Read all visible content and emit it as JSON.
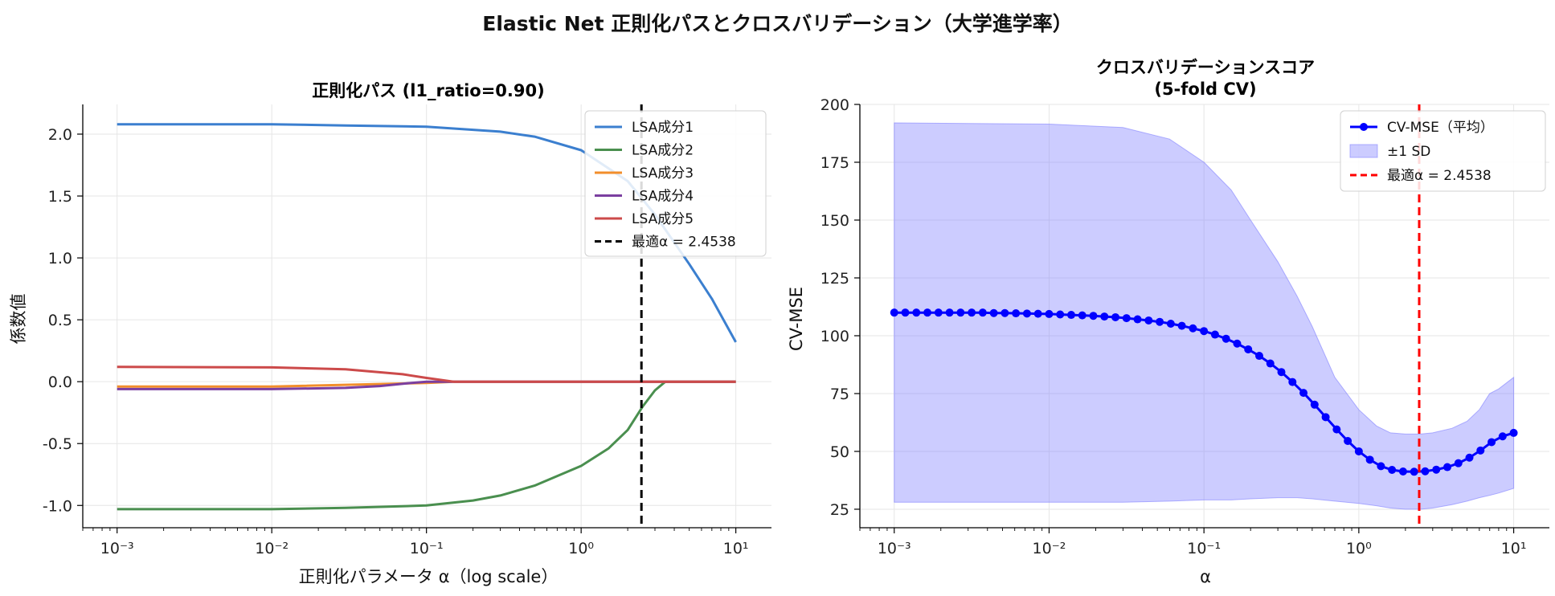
{
  "suptitle": "Elastic Net 正則化パスとクロスバリデーション（大学進学率）",
  "chart_data": [
    {
      "type": "line",
      "title": "正則化パス (l1_ratio=0.90)",
      "xlabel": "正則化パラメータ α（log scale）",
      "ylabel": "係数値",
      "xscale": "log",
      "xlim": [
        0.0006,
        17
      ],
      "ylim": [
        -1.18,
        2.24
      ],
      "xtick_values": [
        0.001,
        0.01,
        0.1,
        1,
        10
      ],
      "xtick_labels": [
        "10⁻³",
        "10⁻²",
        "10⁻¹",
        "10⁰",
        "10¹"
      ],
      "ytick_values": [
        -1.0,
        -0.5,
        0.0,
        0.5,
        1.0,
        1.5,
        2.0
      ],
      "ytick_labels": [
        "-1.0",
        "-0.5",
        "0.0",
        "0.5",
        "1.0",
        "1.5",
        "2.0"
      ],
      "grid": true,
      "legend_position": "top-right",
      "series": [
        {
          "name": "LSA成分1",
          "color": "#3b7fcf",
          "x": [
            0.001,
            0.003,
            0.01,
            0.03,
            0.1,
            0.3,
            0.5,
            1,
            2,
            3,
            5,
            7,
            10
          ],
          "y": [
            2.08,
            2.08,
            2.08,
            2.07,
            2.06,
            2.02,
            1.98,
            1.87,
            1.62,
            1.35,
            0.95,
            0.67,
            0.32
          ]
        },
        {
          "name": "LSA成分2",
          "color": "#4a8f4f",
          "x": [
            0.001,
            0.01,
            0.03,
            0.1,
            0.2,
            0.3,
            0.5,
            1,
            1.5,
            2,
            2.5,
            3,
            3.5,
            10
          ],
          "y": [
            -1.03,
            -1.03,
            -1.02,
            -1.0,
            -0.96,
            -0.92,
            -0.84,
            -0.68,
            -0.54,
            -0.39,
            -0.2,
            -0.07,
            0.0,
            0.0
          ]
        },
        {
          "name": "LSA成分3",
          "color": "#f28e2b",
          "x": [
            0.001,
            0.01,
            0.1,
            0.15,
            10
          ],
          "y": [
            -0.04,
            -0.04,
            -0.01,
            0.0,
            0.0
          ]
        },
        {
          "name": "LSA成分4",
          "color": "#7b3fa0",
          "x": [
            0.001,
            0.01,
            0.03,
            0.05,
            0.08,
            0.1,
            10
          ],
          "y": [
            -0.06,
            -0.06,
            -0.05,
            -0.035,
            -0.01,
            0.0,
            0.0
          ]
        },
        {
          "name": "LSA成分5",
          "color": "#cc4a4a",
          "x": [
            0.001,
            0.01,
            0.03,
            0.07,
            0.1,
            0.15,
            10
          ],
          "y": [
            0.12,
            0.115,
            0.1,
            0.06,
            0.03,
            0.0,
            0.0
          ]
        }
      ],
      "vline": {
        "x": 2.4538,
        "label": "最適α = 2.4538",
        "color": "#000000",
        "style": "dashed"
      }
    },
    {
      "type": "line",
      "title": "クロスバリデーションスコア",
      "subtitle": "(5-fold CV)",
      "xlabel": "α",
      "ylabel": "CV-MSE",
      "xscale": "log",
      "xlim": [
        0.0006,
        17
      ],
      "ylim": [
        17,
        200
      ],
      "xtick_values": [
        0.001,
        0.01,
        0.1,
        1,
        10
      ],
      "xtick_labels": [
        "10⁻³",
        "10⁻²",
        "10⁻¹",
        "10⁰",
        "10¹"
      ],
      "ytick_values": [
        25,
        50,
        75,
        100,
        125,
        150,
        175,
        200
      ],
      "ytick_labels": [
        "25",
        "50",
        "75",
        "100",
        "125",
        "150",
        "175",
        "200"
      ],
      "grid": true,
      "legend_position": "top-right",
      "mean": {
        "name": "CV-MSE（平均）",
        "color": "#0000ff",
        "log10_x_start": -3,
        "log10_x_end": 1,
        "y": [
          110,
          110,
          110,
          110,
          110,
          110,
          110,
          110,
          110,
          109.8,
          109.8,
          109.7,
          109.6,
          109.5,
          109.4,
          109.2,
          109.0,
          108.8,
          108.6,
          108.3,
          108.0,
          107.6,
          107.1,
          106.6,
          106.0,
          105.2,
          104.3,
          103.2,
          102.0,
          100.5,
          98.7,
          96.6,
          94.1,
          91.3,
          88.0,
          84.3,
          80.0,
          75.3,
          70.2,
          64.8,
          59.5,
          54.5,
          50.0,
          46.4,
          43.6,
          42.0,
          41.3,
          41.2,
          41.4,
          42.1,
          43.2,
          44.9,
          47.3,
          50.4,
          54.0,
          56.5,
          58.0
        ]
      },
      "band": {
        "name": "±1 SD",
        "color": "#8080ff",
        "x": [
          0.001,
          0.01,
          0.03,
          0.06,
          0.1,
          0.15,
          0.2,
          0.3,
          0.4,
          0.5,
          0.7,
          1,
          1.3,
          1.6,
          2,
          2.5,
          3,
          4,
          5,
          6,
          7,
          8,
          10
        ],
        "upper": [
          192,
          191.5,
          190,
          185,
          175,
          163,
          150,
          132,
          117,
          104,
          82,
          68,
          61,
          58,
          57.5,
          57.5,
          58,
          60,
          63,
          68,
          75,
          77,
          82
        ],
        "lower": [
          28,
          28,
          28,
          28.5,
          29,
          29,
          29.5,
          30,
          30,
          29.5,
          28.5,
          27.5,
          26.5,
          25.5,
          25,
          25,
          25.5,
          27,
          28.5,
          30,
          31,
          32,
          34
        ]
      },
      "vline": {
        "x": 2.4538,
        "label": "最適α = 2.4538",
        "color": "#ff0000",
        "style": "dashed"
      }
    }
  ]
}
